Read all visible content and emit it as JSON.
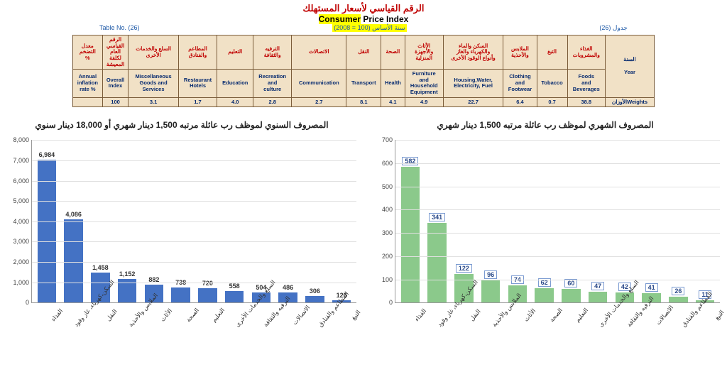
{
  "header": {
    "title_ar": "الرقم القياسي لأسعار المستهلك",
    "title_en_hl": "Consumer",
    "title_en_rest": " Price Index",
    "table_no_left": "Table No. (26)",
    "table_no_right": "جدول (26)",
    "base_year": "سنة الأساس (100 = 2008)"
  },
  "weights_table": {
    "cols": [
      {
        "ar": "معدل\nالتضخم\n%",
        "en": "Annual\ninflation\nrate %",
        "w": ""
      },
      {
        "ar": "الرقم\nالقياسي\nالعام\nلكلفة\nالمعيشة",
        "en": "Overall\nIndex",
        "w": "100"
      },
      {
        "ar": "السلع والخدمات\nالأخرى",
        "en": "Miscellaneous\nGoods and\nServices",
        "w": "3.1"
      },
      {
        "ar": "المطاعم\nوالفنادق",
        "en": "Restaurant\nHotels",
        "w": "1.7"
      },
      {
        "ar": "التعليم",
        "en": "Education",
        "w": "4.0"
      },
      {
        "ar": "الترفيه\nوالثقافة",
        "en": "Recreation\nand\nculture",
        "w": "2.8"
      },
      {
        "ar": "الاتصالات",
        "en": "Communication",
        "w": "2.7"
      },
      {
        "ar": "النقل",
        "en": "Transport",
        "w": "8.1"
      },
      {
        "ar": "الصحة",
        "en": "Health",
        "w": "4.1"
      },
      {
        "ar": "الأثاث\nوالأجهزة\nالمنزلية",
        "en": "Furniture\nand\nHousehold\nEquipment",
        "w": "4.9"
      },
      {
        "ar": "السكن والماء\nوالكهرباء والغاز\nوأنواع الوقود الأخرى",
        "en": "Housing,Water,\nElectricity, Fuel",
        "w": "22.7"
      },
      {
        "ar": "الملابس\nوالأحذية",
        "en": "Clothing\nand\nFootwear",
        "w": "6.4"
      },
      {
        "ar": "التبغ",
        "en": "Tobacco",
        "w": "0.7"
      },
      {
        "ar": "الغذاء\nوالمشروبات",
        "en": "Foods\nand\nBeverages",
        "w": "38.8"
      },
      {
        "ar": "السنة\n\nYear",
        "en": "",
        "w": "الأوزانWeights"
      }
    ]
  },
  "chart_left": {
    "title": "المصروف السنوي لموظف رب عائلة مرتبه 1,500 دينار شهري أو 18,000 دينار سنوي",
    "type": "bar",
    "bar_color": "#4472c4",
    "value_color": "#333333",
    "grid_color": "#e0e0e0",
    "ylim": [
      0,
      8000
    ],
    "ytick_step": 1000,
    "categories": [
      "الغذاء",
      "السكن،كهرباء، غاز وقود",
      "النقل",
      "الملابس والأحذية",
      "الأثاث",
      "الصحة",
      "التعليم",
      "السلع والخدمات الأخرى",
      "الترفيه والثقافة",
      "الاتصالات",
      "المطاعم والفنادق",
      "التبغ"
    ],
    "values": [
      6984,
      4086,
      1458,
      1152,
      882,
      738,
      720,
      558,
      504,
      486,
      306,
      126
    ],
    "value_labels": [
      "6,984",
      "4,086",
      "1,458",
      "1,152",
      "882",
      "738",
      "720",
      "558",
      "504",
      "486",
      "306",
      "126"
    ],
    "boxed_labels": false
  },
  "chart_right": {
    "title": "المصروف الشهري لموظف رب عائلة مرتبه 1,500 دينار شهري",
    "type": "bar",
    "bar_color": "#8bc98b",
    "value_color": "#2a4a8a",
    "grid_color": "#e0e0e0",
    "ylim": [
      0,
      700
    ],
    "ytick_step": 100,
    "categories": [
      "الغذاء",
      "السكن،كهرباء، غاز وقود",
      "النقل",
      "الملابس والأحذية",
      "الأثاث",
      "الصحة",
      "التعليم",
      "السلع والخدمات الأخرى",
      "الترفيه والثقافة",
      "الاتصالات",
      "المطاعم والفنادق",
      "التبغ"
    ],
    "values": [
      582,
      341,
      122,
      96,
      74,
      62,
      60,
      47,
      42,
      41,
      26,
      11
    ],
    "value_labels": [
      "582",
      "341",
      "122",
      "96",
      "74",
      "62",
      "60",
      "47",
      "42",
      "41",
      "26",
      "11"
    ],
    "boxed_labels": true
  }
}
